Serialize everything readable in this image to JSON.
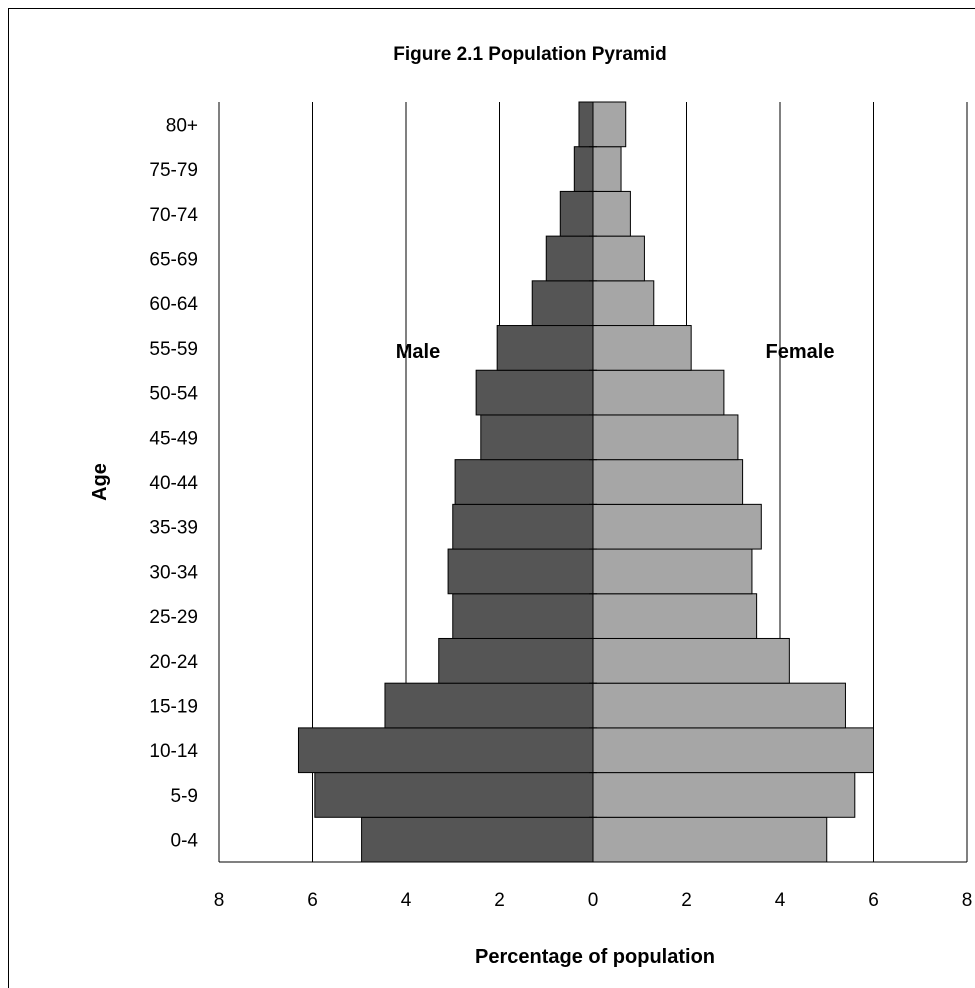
{
  "chart_data": {
    "type": "bar",
    "orientation": "horizontal",
    "title": "Figure 2.1 Population Pyramid",
    "xlabel": "Percentage of population",
    "ylabel": "Age",
    "categories": [
      "0-4",
      "5-9",
      "10-14",
      "15-19",
      "20-24",
      "25-29",
      "30-34",
      "35-39",
      "40-44",
      "45-49",
      "50-54",
      "55-59",
      "60-64",
      "65-69",
      "70-74",
      "75-79",
      "80+"
    ],
    "series": [
      {
        "name": "Male",
        "color": "#555555",
        "values": [
          4.95,
          5.95,
          6.3,
          4.45,
          3.3,
          3.0,
          3.1,
          3.0,
          2.95,
          2.4,
          2.5,
          2.05,
          1.3,
          1.0,
          0.7,
          0.4,
          0.3
        ]
      },
      {
        "name": "Female",
        "color": "#a6a6a6",
        "values": [
          5.0,
          5.6,
          6.0,
          5.4,
          4.2,
          3.5,
          3.4,
          3.6,
          3.2,
          3.1,
          2.8,
          2.1,
          1.3,
          1.1,
          0.8,
          0.6,
          0.7
        ]
      }
    ],
    "xlim": [
      -8,
      8
    ],
    "xticks": [
      -8,
      -6,
      -4,
      -2,
      0,
      2,
      4,
      6,
      8
    ],
    "xtick_labels": [
      "8",
      "6",
      "4",
      "2",
      "0",
      "2",
      "4",
      "6",
      "8"
    ],
    "grid": "vertical gridlines",
    "legend": "none (series labeled inside plot)",
    "bar_border_color": "#000000"
  }
}
